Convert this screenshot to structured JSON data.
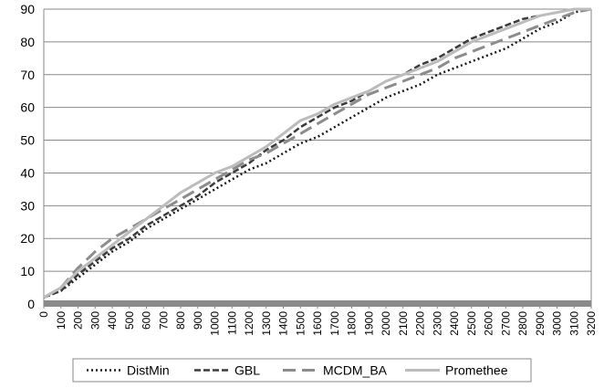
{
  "chart_data": {
    "type": "line",
    "title": "",
    "xlabel": "",
    "ylabel": "",
    "x_ticks": [
      0,
      100,
      200,
      300,
      400,
      500,
      600,
      700,
      800,
      900,
      1000,
      1100,
      1200,
      1300,
      1400,
      1500,
      1600,
      1700,
      1800,
      1900,
      2000,
      2100,
      2200,
      2300,
      2400,
      2500,
      2600,
      2700,
      2800,
      2900,
      3000,
      3100,
      3200
    ],
    "y_ticks": [
      0,
      10,
      20,
      30,
      40,
      50,
      60,
      70,
      80,
      90
    ],
    "xlim": [
      0,
      3200
    ],
    "ylim": [
      0,
      90
    ],
    "grid": "horizontal",
    "legend_position": "bottom",
    "series": [
      {
        "name": "DistMin",
        "style": "dotted",
        "color": "#1a1a1a",
        "x": [
          0,
          100,
          200,
          300,
          400,
          500,
          600,
          700,
          800,
          900,
          1000,
          1100,
          1200,
          1300,
          1400,
          1500,
          1600,
          1700,
          1800,
          1900,
          2000,
          2100,
          2200,
          2300,
          2400,
          2500,
          2600,
          2700,
          2800,
          2900,
          3000,
          3100,
          3200
        ],
        "values": [
          2,
          4,
          8,
          12,
          16,
          19,
          23,
          26,
          29,
          32,
          35,
          38,
          41,
          43,
          46,
          49,
          51,
          54,
          57,
          60,
          63,
          65,
          67,
          70,
          72,
          74,
          76,
          78,
          81,
          84,
          86,
          89,
          90
        ]
      },
      {
        "name": "GBL",
        "style": "dashed",
        "color": "#3c3c3c",
        "x": [
          0,
          100,
          200,
          300,
          400,
          500,
          600,
          700,
          800,
          900,
          1000,
          1100,
          1200,
          1300,
          1400,
          1500,
          1600,
          1700,
          1800,
          1900,
          2000,
          2100,
          2200,
          2300,
          2400,
          2500,
          2600,
          2700,
          2800,
          2900,
          3000,
          3100,
          3200
        ],
        "values": [
          2,
          4,
          9,
          13,
          17,
          20,
          24,
          27,
          30,
          33,
          37,
          40,
          43,
          47,
          50,
          54,
          57,
          60,
          62,
          65,
          68,
          70,
          73,
          75,
          78,
          81,
          83,
          85,
          87,
          88,
          89,
          90,
          90
        ]
      },
      {
        "name": "MCDM_BA",
        "style": "long-dash",
        "color": "#8c8c8c",
        "x": [
          0,
          100,
          200,
          300,
          400,
          500,
          600,
          700,
          800,
          900,
          1000,
          1100,
          1200,
          1300,
          1400,
          1500,
          1600,
          1700,
          1800,
          1900,
          2000,
          2100,
          2200,
          2300,
          2400,
          2500,
          2600,
          2700,
          2800,
          2900,
          3000,
          3100,
          3200
        ],
        "values": [
          2,
          5,
          11,
          16,
          20,
          23,
          26,
          29,
          32,
          35,
          38,
          41,
          44,
          46,
          49,
          52,
          55,
          58,
          61,
          64,
          66,
          68,
          70,
          72,
          75,
          77,
          79,
          81,
          83,
          85,
          87,
          89,
          90
        ]
      },
      {
        "name": "Promethee",
        "style": "solid",
        "color": "#bcbcbc",
        "x": [
          0,
          100,
          200,
          300,
          400,
          500,
          600,
          700,
          800,
          900,
          1000,
          1100,
          1200,
          1300,
          1400,
          1500,
          1600,
          1700,
          1800,
          1900,
          2000,
          2100,
          2200,
          2300,
          2400,
          2500,
          2600,
          2700,
          2800,
          2900,
          3000,
          3100,
          3200
        ],
        "values": [
          2,
          5,
          10,
          14,
          18,
          22,
          26,
          30,
          34,
          37,
          40,
          42,
          45,
          48,
          52,
          56,
          58,
          61,
          63,
          65,
          68,
          70,
          72,
          74,
          77,
          80,
          82,
          84,
          86,
          88,
          89,
          90,
          90
        ]
      }
    ]
  }
}
